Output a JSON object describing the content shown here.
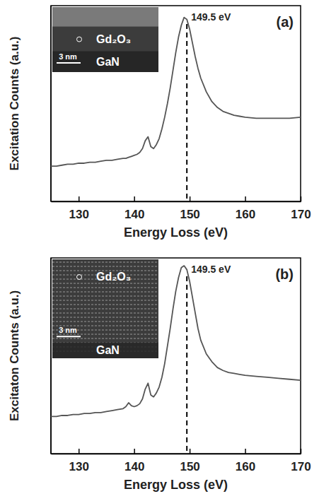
{
  "chart_data": [
    {
      "type": "line",
      "panel_label": "(a)",
      "x_label": "Energy Loss (eV)",
      "y_label": "Excitation Counts (a.u.)",
      "x": [
        125,
        126,
        127,
        128,
        129,
        130,
        131,
        132,
        133,
        134,
        135,
        136,
        137,
        138,
        138.5,
        139,
        139.5,
        140,
        140.5,
        141,
        141.5,
        142,
        142.5,
        143,
        143.5,
        144,
        144.5,
        145,
        145.5,
        146,
        146.5,
        147,
        147.5,
        148,
        148.5,
        149,
        149.5,
        150,
        150.5,
        151,
        151.5,
        152,
        153,
        154,
        155,
        156,
        157,
        158,
        159,
        160,
        162,
        164,
        166,
        168,
        170
      ],
      "values": [
        18,
        18,
        18.5,
        19,
        19,
        19.5,
        19.5,
        20,
        20,
        20.5,
        21,
        21,
        21.5,
        22,
        22,
        22.5,
        23,
        23.5,
        24,
        25,
        27,
        31,
        33,
        28,
        27,
        29,
        32,
        37,
        43,
        50,
        58,
        67,
        76,
        84,
        90,
        94,
        93,
        88,
        81,
        74,
        68,
        63,
        56,
        51,
        48,
        46,
        45,
        44,
        43.5,
        43,
        42.5,
        42.5,
        42.5,
        42.5,
        43
      ],
      "color": "#555555",
      "xlim": [
        125,
        170
      ],
      "xticks": [
        130,
        140,
        150,
        160,
        170
      ],
      "ylim": [
        0,
        100
      ],
      "tick_labels": "x",
      "annotations": [
        {
          "x": 149.5,
          "text": "149.5 eV",
          "line_style": "dashed"
        }
      ],
      "inset": {
        "labels": [
          "Gd₂O₃",
          "GaN"
        ],
        "scale_bar": "3 nm"
      }
    },
    {
      "type": "line",
      "panel_label": "(b)",
      "x_label": "Energy Loss (eV)",
      "y_label": "Excitaton Counts (a.u.)",
      "x": [
        125,
        126,
        127,
        128,
        129,
        130,
        131,
        132,
        133,
        134,
        135,
        136,
        137,
        138,
        138.5,
        139,
        139.5,
        140,
        140.5,
        141,
        141.5,
        142,
        142.5,
        143,
        143.5,
        144,
        144.5,
        145,
        145.5,
        146,
        146.5,
        147,
        147.5,
        148,
        148.5,
        149,
        149.5,
        150,
        150.5,
        151,
        151.5,
        152,
        153,
        154,
        155,
        156,
        157,
        158,
        159,
        160,
        162,
        164,
        166,
        168,
        170
      ],
      "values": [
        19,
        19,
        19.5,
        19.5,
        20,
        20,
        20.5,
        20.5,
        21,
        21,
        21.5,
        22,
        22.5,
        23,
        24,
        26,
        24.5,
        24,
        24.5,
        25.5,
        28,
        33,
        36,
        30,
        29,
        31,
        34,
        39,
        46,
        55,
        64,
        74,
        83,
        90,
        95,
        96,
        94,
        88,
        80,
        72,
        64,
        58,
        51,
        47,
        44,
        42.5,
        41.5,
        41,
        40.5,
        40,
        39.5,
        39,
        38.5,
        38,
        37.5
      ],
      "color": "#555555",
      "xlim": [
        125,
        170
      ],
      "xticks": [
        130,
        140,
        150,
        160,
        170
      ],
      "ylim": [
        0,
        100
      ],
      "tick_labels": "x",
      "annotations": [
        {
          "x": 149.5,
          "text": "149.5 eV",
          "line_style": "dashed"
        }
      ],
      "inset": {
        "labels": [
          "Gd₂O₃",
          "GaN"
        ],
        "scale_bar": "3 nm"
      }
    }
  ]
}
